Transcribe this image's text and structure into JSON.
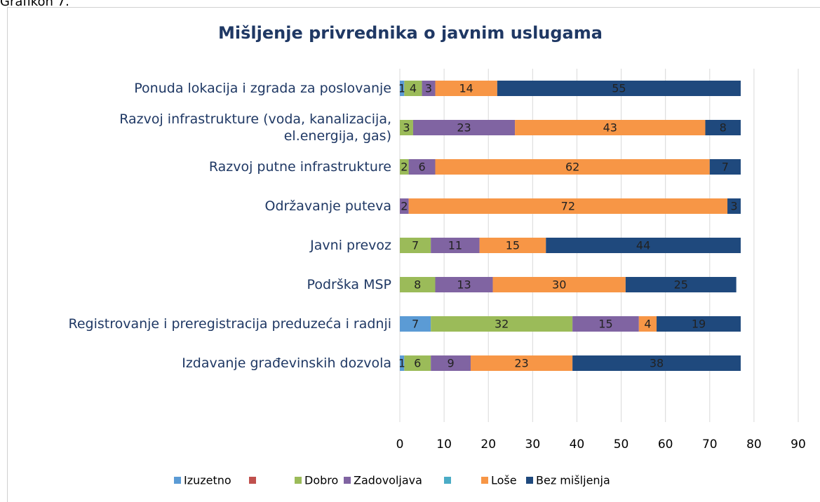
{
  "caption": "Grafikon 7.",
  "chart_data": {
    "type": "stacked-bar-horizontal",
    "title": "Mišljenje privrednika o javnim uslugama",
    "categories": [
      "Ponuda lokacija i zgrada za poslovanje",
      "Razvoj infrastrukture  (voda, kanalizacija,\nel.energija, gas)",
      "Razvoj  putne infrastrukture",
      "Održavanje puteva",
      "Javni prevoz",
      "Podrška MSP",
      "Registrovanje i preregistracija preduzeća i radnji",
      "Izdavanje građevinskih dozvola"
    ],
    "series": [
      {
        "name": "Izuzetno",
        "color": "#5b9bd5",
        "values": [
          1,
          null,
          null,
          null,
          null,
          null,
          7,
          1
        ]
      },
      {
        "name": null,
        "color": "#c0504d",
        "values": [
          null,
          null,
          null,
          null,
          null,
          null,
          null,
          null
        ]
      },
      {
        "name": "Dobro",
        "color": "#9bbb59",
        "values": [
          4,
          3,
          2,
          null,
          7,
          8,
          32,
          6
        ]
      },
      {
        "name": "Zadovoljava",
        "color": "#8064a2",
        "values": [
          3,
          23,
          6,
          2,
          11,
          13,
          15,
          9
        ]
      },
      {
        "name": null,
        "color": "#4bacc6",
        "values": [
          null,
          null,
          null,
          null,
          null,
          null,
          null,
          null
        ]
      },
      {
        "name": "Loše",
        "color": "#f79646",
        "values": [
          14,
          43,
          62,
          72,
          15,
          30,
          4,
          23
        ]
      },
      {
        "name": "Bez mišljenja",
        "color": "#1f497d",
        "values": [
          55,
          8,
          7,
          3,
          44,
          25,
          19,
          38
        ]
      }
    ],
    "xlim": [
      0,
      90
    ],
    "xticks": [
      0,
      10,
      20,
      30,
      40,
      50,
      60,
      70,
      80,
      90
    ],
    "grid": true,
    "legend": "bottom"
  }
}
